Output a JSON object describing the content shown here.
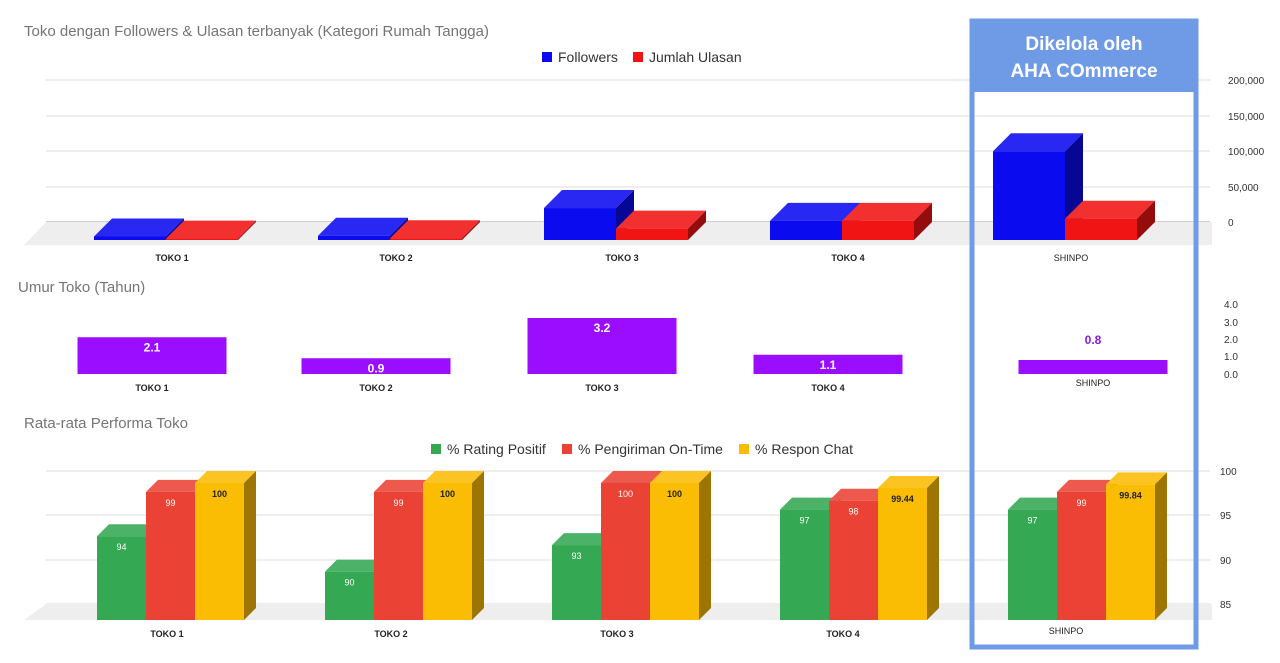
{
  "highlight": {
    "line1": "Dikelola oleh",
    "line2": "AHA COmmerce",
    "color": "#6e9ae6"
  },
  "chart_data": [
    {
      "type": "bar",
      "title": "Toko dengan Followers & Ulasan terbanyak (Kategori Rumah Tangga)",
      "categories": [
        "TOKO 1",
        "TOKO 2",
        "TOKO 3",
        "TOKO 4",
        "SHINPO"
      ],
      "series": [
        {
          "name": "Followers",
          "color": "#0b0bf0",
          "values": [
            5000,
            6000,
            45000,
            27000,
            125000
          ]
        },
        {
          "name": "Jumlah Ulasan",
          "color": "#f01414",
          "values": [
            2000,
            2500,
            16000,
            27000,
            30000
          ]
        }
      ],
      "yticks": [
        "200,000",
        "150,000",
        "100,000",
        "50,000",
        "0"
      ],
      "ylim": [
        0,
        200000
      ],
      "legend": "top-center"
    },
    {
      "type": "bar",
      "title": "Umur Toko (Tahun)",
      "categories": [
        "TOKO 1",
        "TOKO 2",
        "TOKO 3",
        "TOKO 4",
        "SHINPO"
      ],
      "series": [
        {
          "name": "Umur Toko",
          "color": "#9b0dff",
          "values": [
            2.1,
            0.9,
            3.2,
            1.1,
            0.8
          ]
        }
      ],
      "labels": [
        "2.1",
        "0.9",
        "3.2",
        "1.1",
        "0.8"
      ],
      "yticks": [
        "4.0",
        "3.0",
        "2.0",
        "1.0",
        "0.0"
      ],
      "ylim": [
        0,
        4
      ]
    },
    {
      "type": "bar",
      "title": "Rata-rata Performa Toko",
      "categories": [
        "TOKO 1",
        "TOKO 2",
        "TOKO 3",
        "TOKO 4",
        "SHINPO"
      ],
      "series": [
        {
          "name": "% Rating Positif",
          "color": "#34a853",
          "values": [
            94,
            90,
            93,
            97,
            97
          ],
          "labels": [
            "94",
            "90",
            "93",
            "97",
            "97"
          ]
        },
        {
          "name": "% Pengiriman On-Time",
          "color": "#ea4335",
          "values": [
            99,
            99,
            100,
            98,
            99
          ],
          "labels": [
            "99",
            "99",
            "100",
            "98",
            "99"
          ]
        },
        {
          "name": "% Respon Chat",
          "color": "#fbbc04",
          "values": [
            100,
            100,
            100,
            99.44,
            99.84
          ],
          "labels": [
            "100",
            "100",
            "100",
            "99.44",
            "99.84"
          ]
        }
      ],
      "yticks": [
        "100",
        "95",
        "90",
        "85"
      ],
      "ylim": [
        85,
        100
      ],
      "legend": "top-center"
    }
  ]
}
